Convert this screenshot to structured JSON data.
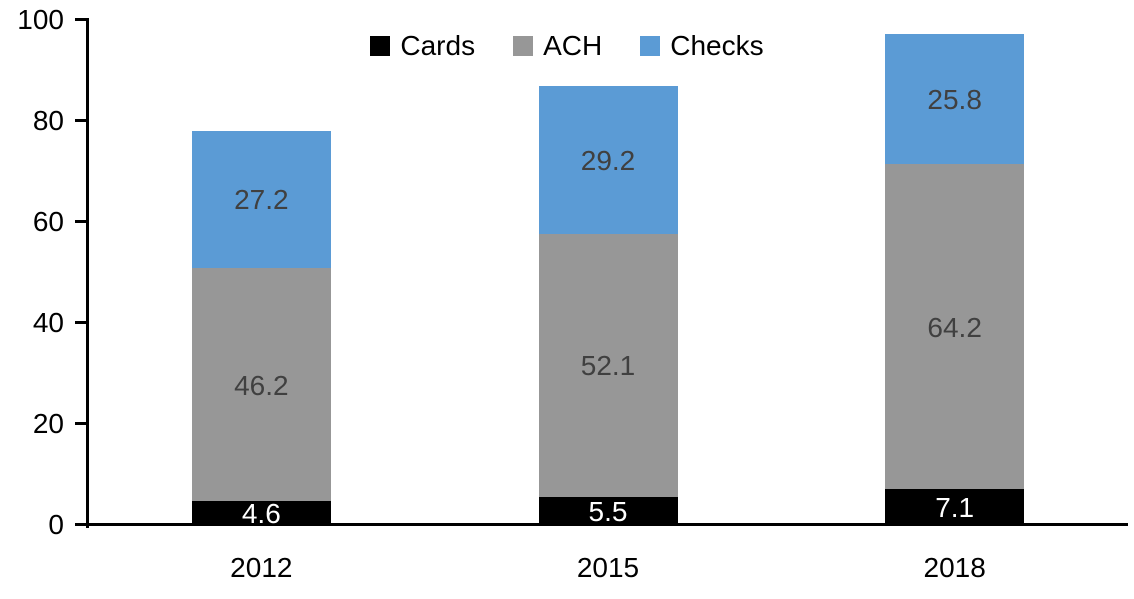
{
  "chart_data": {
    "type": "bar",
    "stacked": true,
    "title": "",
    "xlabel": "",
    "ylabel": "",
    "categories": [
      "2012",
      "2015",
      "2018"
    ],
    "series": [
      {
        "name": "Cards",
        "color": "#000000",
        "label_color": "#ffffff",
        "values": [
          4.6,
          5.5,
          7.1
        ]
      },
      {
        "name": "ACH",
        "color": "#979797",
        "label_color": "#404040",
        "values": [
          46.2,
          52.1,
          64.2
        ]
      },
      {
        "name": "Checks",
        "color": "#5b9bd5",
        "label_color": "#404040",
        "values": [
          27.2,
          29.2,
          25.8
        ]
      }
    ],
    "totals": [
      78.0,
      86.8,
      97.1
    ],
    "ylim": [
      0,
      100
    ],
    "yticks": [
      0,
      20,
      40,
      60,
      80,
      100
    ],
    "grid": false,
    "legend_position": "top-center",
    "axis_color": "#000000",
    "tick_label_color": "#000000",
    "background_color": "#ffffff"
  }
}
